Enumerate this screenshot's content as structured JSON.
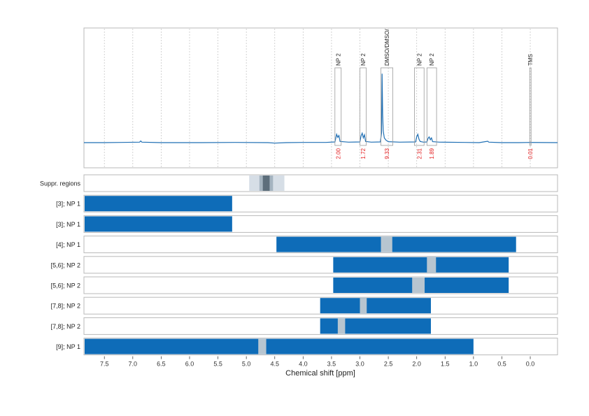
{
  "chart_data": {
    "type": "line",
    "xlabel": "Chemical shift [ppm]",
    "xlim": [
      7.86,
      -0.48
    ],
    "x_reversed": true,
    "x_ticks": [
      7.5,
      7.0,
      6.5,
      6.0,
      5.5,
      5.0,
      4.5,
      4.0,
      3.5,
      3.0,
      2.5,
      2.0,
      1.5,
      1.0,
      0.5,
      0.0
    ],
    "x_tick_labels": [
      "7.5",
      "7.0",
      "6.5",
      "6.0",
      "5.5",
      "5.0",
      "4.5",
      "4.0",
      "3.5",
      "3.0",
      "2.5",
      "2.0",
      "1.5",
      "1.0",
      "0.5",
      "0.0"
    ],
    "grid": true,
    "spectrum": {
      "color": "#1f6fb4",
      "baseline_points": [
        [
          7.86,
          0.0
        ],
        [
          7.5,
          0.0
        ],
        [
          7.2,
          0.01
        ],
        [
          6.88,
          0.02
        ],
        [
          6.86,
          0.07
        ],
        [
          6.84,
          0.02
        ],
        [
          6.5,
          0.0
        ],
        [
          5.8,
          0.0
        ],
        [
          5.2,
          0.01
        ],
        [
          4.62,
          0.0
        ],
        [
          4.5,
          -0.02
        ],
        [
          4.3,
          0.0
        ],
        [
          4.0,
          0.01
        ],
        [
          3.6,
          0.01
        ],
        [
          3.44,
          0.03
        ],
        [
          3.41,
          0.35
        ],
        [
          3.39,
          0.22
        ],
        [
          3.37,
          0.3
        ],
        [
          3.35,
          0.05
        ],
        [
          3.2,
          0.02
        ],
        [
          3.0,
          0.03
        ],
        [
          2.98,
          0.28
        ],
        [
          2.96,
          0.4
        ],
        [
          2.94,
          0.2
        ],
        [
          2.92,
          0.33
        ],
        [
          2.9,
          0.05
        ],
        [
          2.8,
          0.02
        ],
        [
          2.64,
          0.03
        ],
        [
          2.62,
          0.4
        ],
        [
          2.61,
          2.9
        ],
        [
          2.6,
          1.2
        ],
        [
          2.59,
          0.5
        ],
        [
          2.57,
          0.2
        ],
        [
          2.54,
          0.1
        ],
        [
          2.5,
          0.04
        ],
        [
          2.3,
          0.02
        ],
        [
          2.02,
          0.03
        ],
        [
          2.0,
          0.25
        ],
        [
          1.98,
          0.35
        ],
        [
          1.96,
          0.15
        ],
        [
          1.94,
          0.05
        ],
        [
          1.88,
          0.02
        ],
        [
          1.82,
          0.03
        ],
        [
          1.8,
          0.18
        ],
        [
          1.78,
          0.24
        ],
        [
          1.76,
          0.12
        ],
        [
          1.74,
          0.2
        ],
        [
          1.72,
          0.04
        ],
        [
          1.6,
          0.02
        ],
        [
          1.15,
          0.01
        ],
        [
          0.9,
          0.0
        ],
        [
          0.75,
          0.06
        ],
        [
          0.73,
          0.02
        ],
        [
          0.5,
          0.0
        ],
        [
          0.2,
          0.0
        ],
        [
          0.0,
          0.01
        ],
        [
          -0.48,
          0.0
        ]
      ],
      "y_max": 3.0
    },
    "peak_annotations": [
      {
        "label": "NP 2",
        "from": 3.44,
        "to": 3.33,
        "integral": "2.00"
      },
      {
        "label": "NP 2",
        "from": 3.0,
        "to": 2.89,
        "integral": "1.72"
      },
      {
        "label": "DMSO/DMSO/",
        "from": 2.63,
        "to": 2.42,
        "integral": "9.33"
      },
      {
        "label": "NP 2",
        "from": 2.04,
        "to": 1.87,
        "integral": "2.31"
      },
      {
        "label": "NP 2",
        "from": 1.82,
        "to": 1.65,
        "integral": "1.89"
      },
      {
        "label": "TMS",
        "from": 0.01,
        "to": -0.01,
        "integral": "0.01"
      }
    ],
    "suppression_row": {
      "label": "Suppr. regions",
      "regions": [
        {
          "from": 4.95,
          "to": 4.33,
          "level": "light"
        },
        {
          "from": 4.77,
          "to": 4.53,
          "level": "medium"
        },
        {
          "from": 4.71,
          "to": 4.59,
          "level": "dark"
        }
      ]
    },
    "range_rows": [
      {
        "label": "[3]; NP 1",
        "ranges": [
          [
            7.86,
            5.25
          ]
        ],
        "gaps": []
      },
      {
        "label": "[3]; NP 1",
        "ranges": [
          [
            7.86,
            5.25
          ]
        ],
        "gaps": []
      },
      {
        "label": "[4]; NP 1",
        "ranges": [
          [
            4.47,
            0.25
          ]
        ],
        "gaps": [
          [
            2.63,
            2.43
          ]
        ]
      },
      {
        "label": "[5,6]; NP 2",
        "ranges": [
          [
            3.47,
            0.38
          ]
        ],
        "gaps": [
          [
            1.82,
            1.66
          ]
        ]
      },
      {
        "label": "[5,6]; NP 2",
        "ranges": [
          [
            3.47,
            0.38
          ]
        ],
        "gaps": [
          [
            2.08,
            1.86
          ]
        ]
      },
      {
        "label": "[7,8]; NP 2",
        "ranges": [
          [
            3.7,
            1.75
          ]
        ],
        "gaps": [
          [
            3.0,
            2.88
          ]
        ]
      },
      {
        "label": "[7,8]; NP 2",
        "ranges": [
          [
            3.7,
            1.75
          ]
        ],
        "gaps": [
          [
            3.39,
            3.26
          ]
        ]
      },
      {
        "label": "[9]; NP 1",
        "ranges": [
          [
            7.86,
            1.0
          ]
        ],
        "gaps": [
          [
            4.79,
            4.65
          ]
        ]
      }
    ],
    "colors": {
      "range_fill": "#0e6cb8",
      "gap_fill": "#b7c5d0",
      "suppr_light": "#d6dee6",
      "suppr_medium": "#a5b4c0",
      "suppr_dark": "#5d6e7b"
    }
  }
}
